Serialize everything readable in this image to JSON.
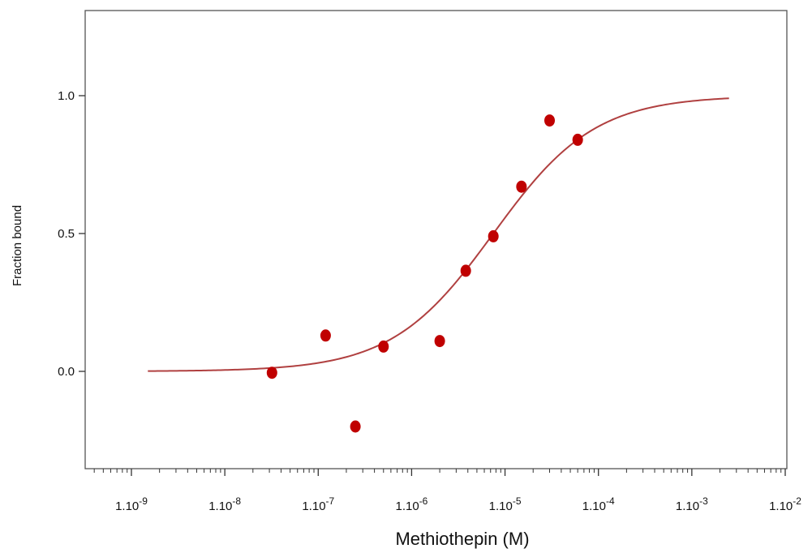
{
  "chart_data": {
    "type": "scatter",
    "title": "",
    "xlabel": "Methiothepin  (M)",
    "ylabel": "Fraction bound",
    "x_scale": "log10",
    "xlim": [
      1.5e-09,
      0.01
    ],
    "ylim": [
      -0.35,
      1.3
    ],
    "grid": false,
    "x_ticks": [
      {
        "value": 1e-09,
        "mantissa": "1.10",
        "exp": "-9"
      },
      {
        "value": 1e-08,
        "mantissa": "1.10",
        "exp": "-8"
      },
      {
        "value": 1e-07,
        "mantissa": "1.10",
        "exp": "-7"
      },
      {
        "value": 1e-06,
        "mantissa": "1.10",
        "exp": "-6"
      },
      {
        "value": 1e-05,
        "mantissa": "1.10",
        "exp": "-5"
      },
      {
        "value": 0.0001,
        "mantissa": "1.10",
        "exp": "-4"
      },
      {
        "value": 0.001,
        "mantissa": "1.10",
        "exp": "-3"
      },
      {
        "value": 0.01,
        "mantissa": "1.10",
        "exp": "-2"
      }
    ],
    "y_ticks": [
      {
        "value": 0.0,
        "label": "0.0"
      },
      {
        "value": 0.5,
        "label": "0.5"
      },
      {
        "value": 1.0,
        "label": "1.0"
      }
    ],
    "points": {
      "color": "#c00000",
      "x": [
        3.2e-08,
        1.2e-07,
        2.5e-07,
        5e-07,
        2e-06,
        3.8e-06,
        7.5e-06,
        1.5e-05,
        3e-05,
        6e-05
      ],
      "y": [
        -0.005,
        0.13,
        -0.2,
        0.09,
        0.11,
        0.365,
        0.49,
        0.67,
        0.91,
        0.84
      ]
    },
    "fit": {
      "color": "#b04040",
      "model": "sigmoid",
      "bottom": 0.0,
      "top": 1.0,
      "ec50": 7.5e-06,
      "hill": 0.8,
      "x_range": [
        1.5e-09,
        0.0025
      ]
    }
  }
}
